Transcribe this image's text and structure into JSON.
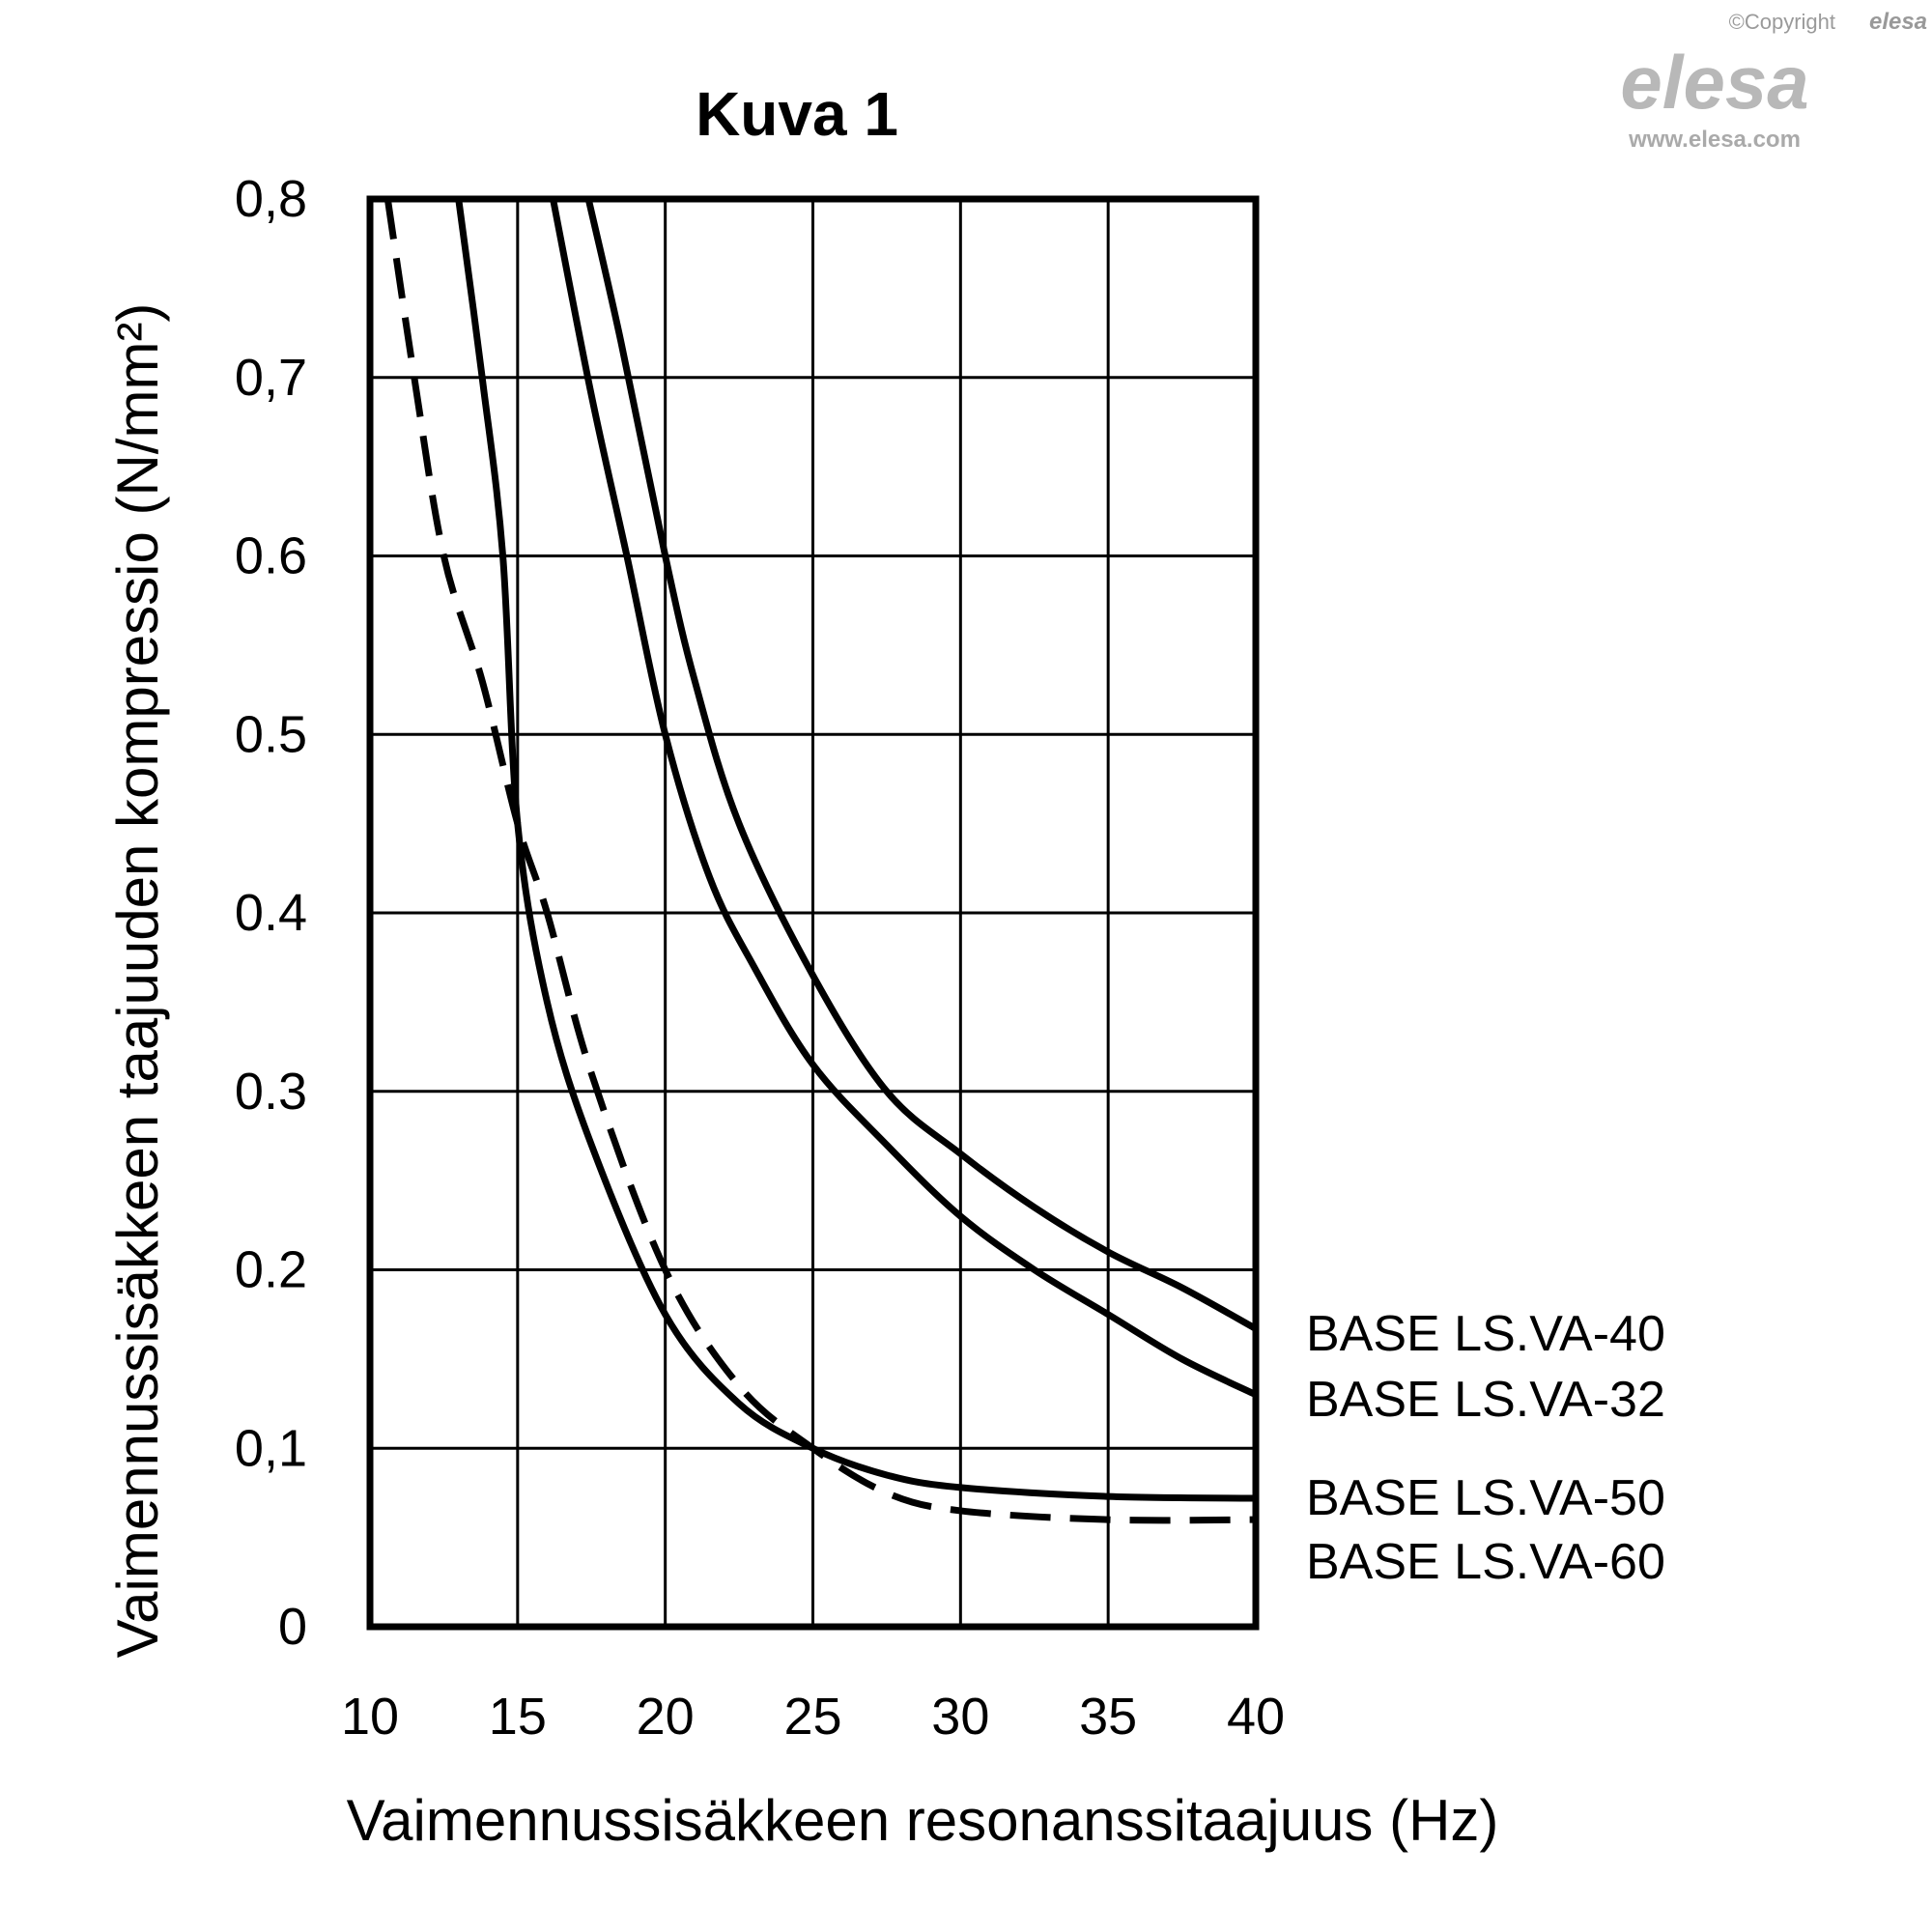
{
  "watermark": {
    "copyright": "©Copyright",
    "brand": "elesa",
    "url": "www.elesa.com"
  },
  "chart_data": {
    "type": "line",
    "title": "Kuva 1",
    "xlabel": "Vaimennussisäkkeen resonanssitaajuus (Hz)",
    "ylabel": "Vaimennussisäkkeen taajuuden kompressio (N/mm²)",
    "xlim": [
      10,
      40
    ],
    "ylim": [
      0,
      0.8
    ],
    "x_ticks": [
      "10",
      "15",
      "20",
      "25",
      "30",
      "35",
      "40"
    ],
    "y_ticks": [
      "0",
      "0,1",
      "0.2",
      "0.3",
      "0.4",
      "0.5",
      "0.6",
      "0,7",
      "0,8"
    ],
    "grid": true,
    "legend": "right",
    "series": [
      {
        "name": "BASE LS.VA-40",
        "style": "solid",
        "points": [
          [
            17.4,
            0.8
          ],
          [
            18.5,
            0.72
          ],
          [
            20,
            0.6
          ],
          [
            21,
            0.53
          ],
          [
            22.5,
            0.45
          ],
          [
            25,
            0.365
          ],
          [
            27.5,
            0.3
          ],
          [
            30,
            0.265
          ],
          [
            32.5,
            0.235
          ],
          [
            35,
            0.21
          ],
          [
            37.5,
            0.19
          ],
          [
            40,
            0.167
          ]
        ]
      },
      {
        "name": "BASE LS.VA-32",
        "style": "solid",
        "points": [
          [
            16.2,
            0.8
          ],
          [
            17.5,
            0.69
          ],
          [
            18.7,
            0.6
          ],
          [
            20,
            0.5
          ],
          [
            21.5,
            0.42
          ],
          [
            23,
            0.37
          ],
          [
            25,
            0.315
          ],
          [
            27.5,
            0.27
          ],
          [
            30,
            0.23
          ],
          [
            32.5,
            0.2
          ],
          [
            35,
            0.175
          ],
          [
            37.5,
            0.15
          ],
          [
            40,
            0.13
          ]
        ]
      },
      {
        "name": "BASE LS.VA-50",
        "style": "solid",
        "points": [
          [
            13.0,
            0.8
          ],
          [
            13.8,
            0.7
          ],
          [
            14.5,
            0.6
          ],
          [
            15,
            0.45
          ],
          [
            16,
            0.35
          ],
          [
            17.5,
            0.27
          ],
          [
            20,
            0.175
          ],
          [
            22.5,
            0.125
          ],
          [
            25,
            0.1
          ],
          [
            27.5,
            0.085
          ],
          [
            30,
            0.078
          ],
          [
            35,
            0.073
          ],
          [
            40,
            0.072
          ]
        ]
      },
      {
        "name": "BASE LS.VA-60",
        "style": "dashed",
        "points": [
          [
            10.6,
            0.8
          ],
          [
            11.5,
            0.7
          ],
          [
            12.5,
            0.6
          ],
          [
            13.8,
            0.53
          ],
          [
            15,
            0.45
          ],
          [
            16,
            0.4
          ],
          [
            17.5,
            0.31
          ],
          [
            20,
            0.2
          ],
          [
            22.5,
            0.135
          ],
          [
            25,
            0.1
          ],
          [
            27.5,
            0.075
          ],
          [
            30,
            0.065
          ],
          [
            35,
            0.06
          ],
          [
            40,
            0.06
          ]
        ]
      }
    ]
  }
}
